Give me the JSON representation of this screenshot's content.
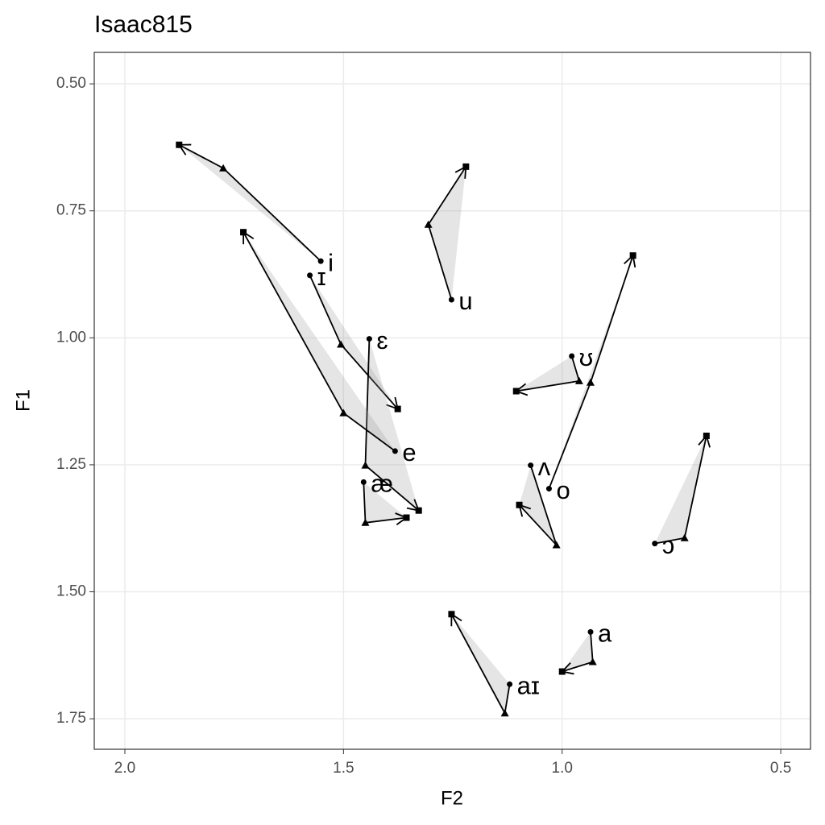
{
  "chart_data": {
    "type": "trajectory",
    "title": "Isaac815",
    "x_label": "F2",
    "y_label": "F1",
    "xlim": [
      2.07,
      0.432
    ],
    "ylim": [
      0.438,
      1.81
    ],
    "x_reversed": true,
    "y_reversed": true,
    "grid": true,
    "color": "#000000",
    "xticks": [
      {
        "value": 2.0,
        "label": "2.0"
      },
      {
        "value": 1.5,
        "label": "1.5"
      },
      {
        "value": 1.0,
        "label": "1.0"
      },
      {
        "value": 0.5,
        "label": "0.5"
      }
    ],
    "yticks": [
      {
        "value": 0.5,
        "label": "0.50"
      },
      {
        "value": 0.75,
        "label": "0.75"
      },
      {
        "value": 1.0,
        "label": "1.00"
      },
      {
        "value": 1.25,
        "label": "1.25"
      },
      {
        "value": 1.5,
        "label": "1.50"
      },
      {
        "value": 1.75,
        "label": "1.75"
      }
    ],
    "series": [
      {
        "name": "i",
        "x": [
          1.552,
          1.775,
          1.876
        ],
        "values": [
          0.849,
          0.666,
          0.62
        ]
      },
      {
        "name": "ɪ",
        "x": [
          1.577,
          1.506,
          1.376
        ],
        "values": [
          0.877,
          1.013,
          1.14
        ]
      },
      {
        "name": "u",
        "x": [
          1.253,
          1.306,
          1.22
        ],
        "values": [
          0.925,
          0.777,
          0.663
        ]
      },
      {
        "name": "ɛ",
        "x": [
          1.441,
          1.45,
          1.328
        ],
        "values": [
          1.002,
          1.251,
          1.34
        ]
      },
      {
        "name": "e",
        "x": [
          1.382,
          1.5,
          1.729
        ],
        "values": [
          1.223,
          1.148,
          0.792
        ]
      },
      {
        "name": "æ",
        "x": [
          1.454,
          1.45,
          1.356
        ],
        "values": [
          1.284,
          1.364,
          1.354
        ]
      },
      {
        "name": "ʊ",
        "x": [
          0.978,
          0.961,
          1.105
        ],
        "values": [
          1.036,
          1.085,
          1.105
        ]
      },
      {
        "name": "o",
        "x": [
          1.03,
          0.935,
          0.838
        ],
        "values": [
          1.297,
          1.088,
          0.838
        ]
      },
      {
        "name": "ʌ",
        "x": [
          1.072,
          1.013,
          1.098
        ],
        "values": [
          1.251,
          1.408,
          1.329
        ]
      },
      {
        "name": "ɔ",
        "x": [
          0.788,
          0.72,
          0.67
        ],
        "values": [
          1.405,
          1.394,
          1.193
        ]
      },
      {
        "name": "a",
        "x": [
          0.935,
          0.93,
          1.0
        ],
        "values": [
          1.579,
          1.638,
          1.657
        ]
      },
      {
        "name": "aɪ",
        "x": [
          1.12,
          1.131,
          1.253
        ],
        "values": [
          1.682,
          1.739,
          1.544
        ]
      }
    ]
  }
}
